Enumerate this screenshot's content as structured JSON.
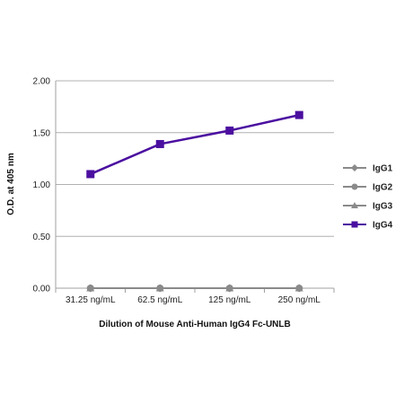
{
  "chart_data": {
    "type": "line",
    "title": "",
    "xlabel": "Dilution of Mouse Anti-Human IgG4 Fc-UNLB",
    "ylabel": "O.D. at 405 nm",
    "categories": [
      "31.25 ng/mL",
      "62.5 ng/mL",
      "125 ng/mL",
      "250 ng/mL"
    ],
    "ylim": [
      0,
      2
    ],
    "yticks": [
      "0.00",
      "0.50",
      "1.00",
      "1.50",
      "2.00"
    ],
    "ytick_values": [
      0,
      0.5,
      1.0,
      1.5,
      2.0
    ],
    "grid": "horizontal",
    "legend_position": "right",
    "series": [
      {
        "name": "IgG1",
        "values": [
          0.0,
          0.0,
          0.0,
          0.0
        ],
        "color": "#8a8a8a",
        "marker": "diamond"
      },
      {
        "name": "IgG2",
        "values": [
          0.0,
          0.0,
          0.0,
          0.0
        ],
        "color": "#8a8a8a",
        "marker": "circle"
      },
      {
        "name": "IgG3",
        "values": [
          0.0,
          0.0,
          0.0,
          0.0
        ],
        "color": "#8a8a8a",
        "marker": "triangle"
      },
      {
        "name": "IgG4",
        "values": [
          1.1,
          1.39,
          1.52,
          1.67
        ],
        "color": "#4b0fa0",
        "marker": "square"
      }
    ]
  }
}
